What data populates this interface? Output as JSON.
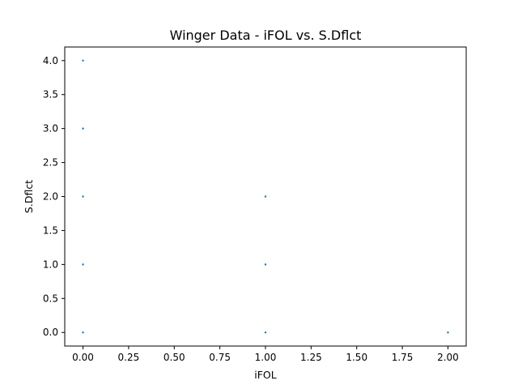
{
  "chart_data": {
    "type": "scatter",
    "title": "Winger Data - iFOL vs. S.Dflct",
    "xlabel": "iFOL",
    "ylabel": "S.Dflct",
    "xlim": [
      -0.1,
      2.1
    ],
    "ylim": [
      -0.2,
      4.2
    ],
    "x_ticks": [
      "0.00",
      "0.25",
      "0.50",
      "0.75",
      "1.00",
      "1.25",
      "1.50",
      "1.75",
      "2.00"
    ],
    "y_ticks": [
      "0.0",
      "0.5",
      "1.0",
      "1.5",
      "2.0",
      "2.5",
      "3.0",
      "3.5",
      "4.0"
    ],
    "grid": false,
    "legend": "none",
    "marker_color": "#1f77b4",
    "points": [
      {
        "x": 0,
        "y": 0
      },
      {
        "x": 0,
        "y": 1
      },
      {
        "x": 0,
        "y": 2
      },
      {
        "x": 0,
        "y": 3
      },
      {
        "x": 0,
        "y": 4
      },
      {
        "x": 1,
        "y": 0
      },
      {
        "x": 1,
        "y": 1
      },
      {
        "x": 1,
        "y": 2
      },
      {
        "x": 2,
        "y": 0
      }
    ]
  }
}
